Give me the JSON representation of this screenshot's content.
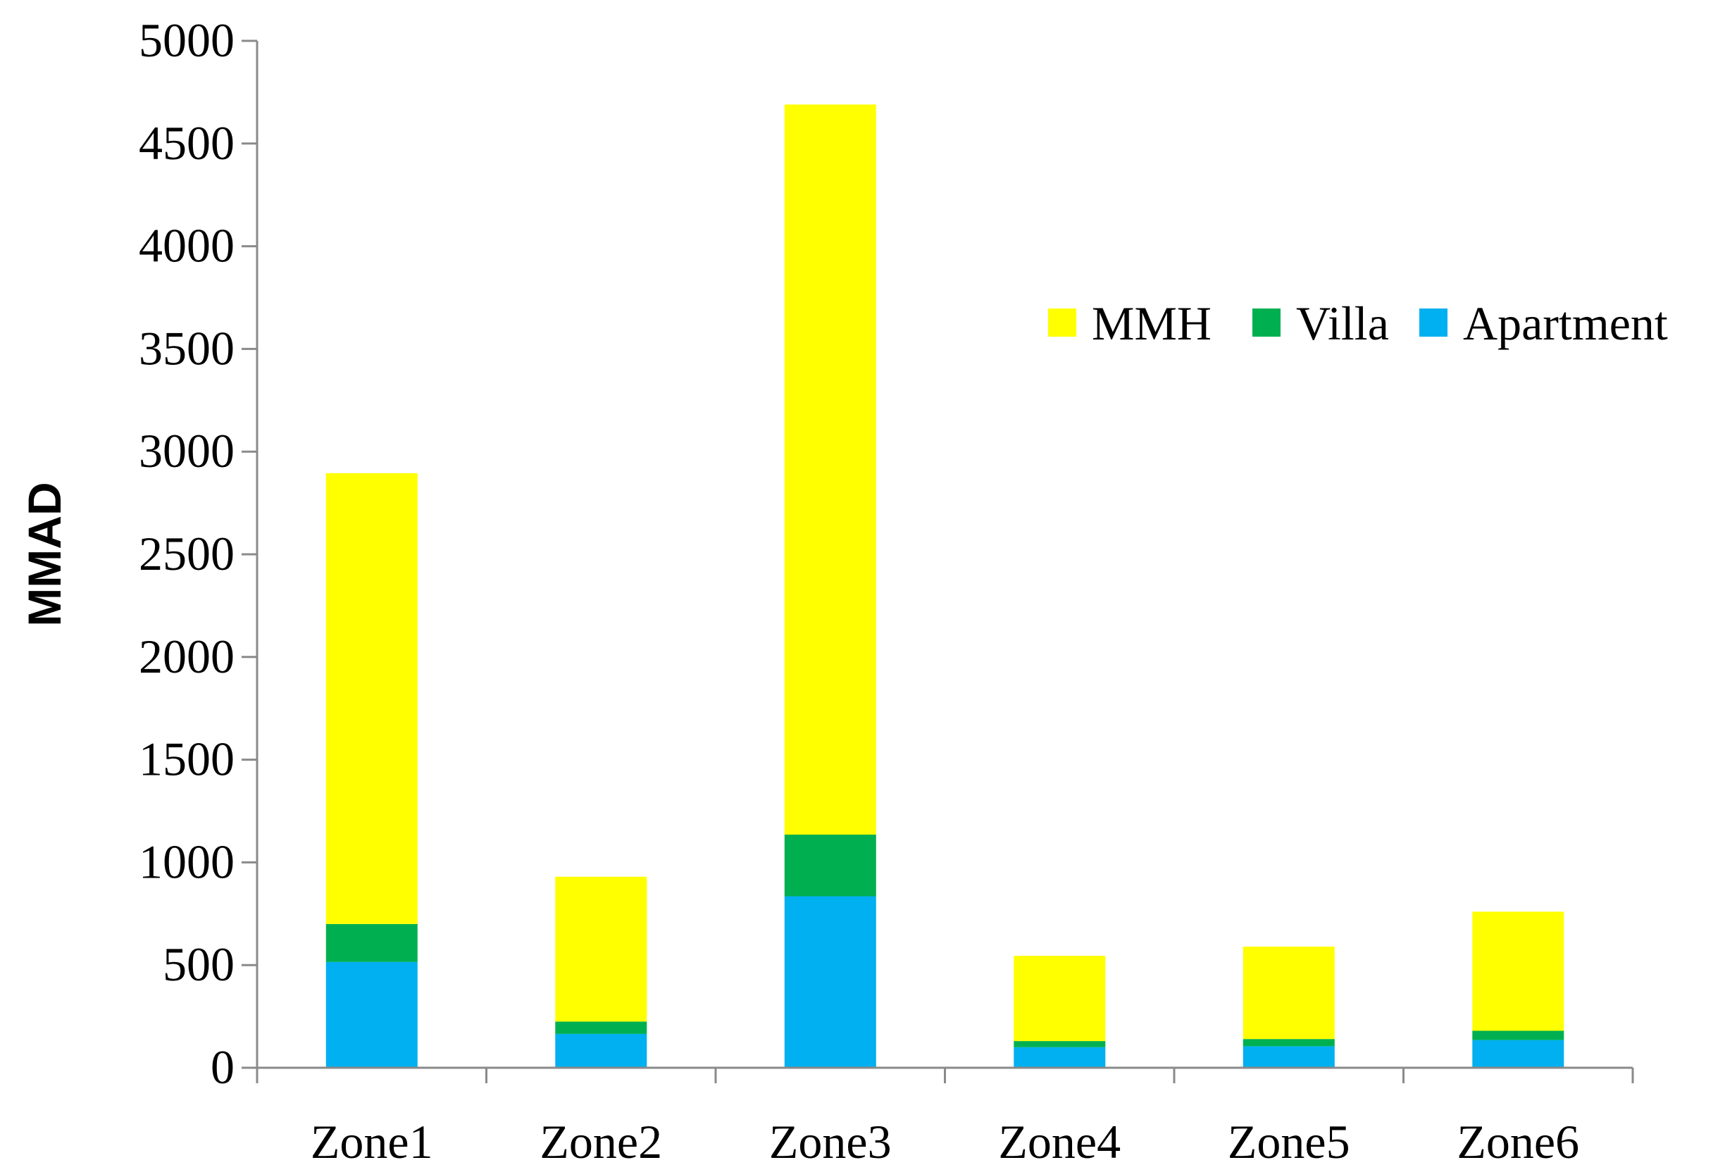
{
  "chart_data": {
    "type": "bar",
    "stacked": true,
    "categories": [
      "Zone1",
      "Zone2",
      "Zone3",
      "Zone4",
      "Zone5",
      "Zone6"
    ],
    "series": [
      {
        "name": "Apartment",
        "color": "#00B0F0",
        "values": [
          515,
          165,
          835,
          100,
          105,
          135
        ]
      },
      {
        "name": "Villa",
        "color": "#00B050",
        "values": [
          185,
          60,
          300,
          30,
          35,
          45
        ]
      },
      {
        "name": "MMH",
        "color": "#FFFF00",
        "values": [
          2195,
          705,
          3555,
          415,
          450,
          580
        ]
      }
    ],
    "legend_order": [
      "MMH",
      "Villa",
      "Apartment"
    ],
    "legend_position": "upper-right",
    "ylabel": "MMAD",
    "xlabel": "",
    "title": "",
    "ylim": [
      0,
      5000
    ],
    "yticks": [
      0,
      500,
      1000,
      1500,
      2000,
      2500,
      3000,
      3500,
      4000,
      4500,
      5000
    ],
    "grid": false
  }
}
